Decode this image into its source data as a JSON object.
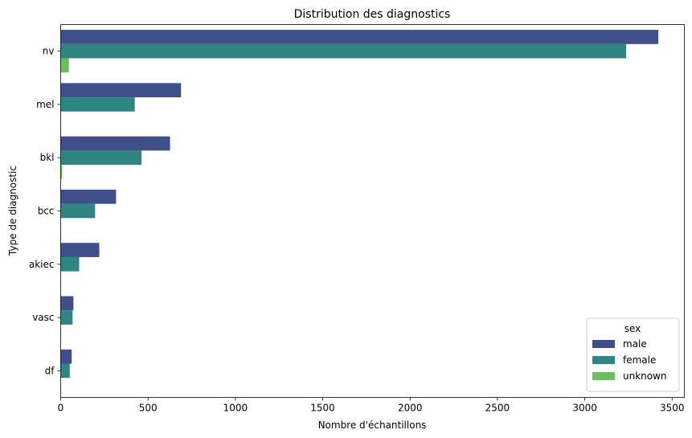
{
  "chart_data": {
    "type": "bar",
    "orientation": "horizontal",
    "title": "Distribution des diagnostics",
    "xlabel": "Nombre d'échantillons",
    "ylabel": "Type de diagnostic",
    "categories": [
      "nv",
      "mel",
      "bkl",
      "bcc",
      "akiec",
      "vasc",
      "df"
    ],
    "xlim": [
      0,
      3570
    ],
    "xticks": [
      0,
      500,
      1000,
      1500,
      2000,
      2500,
      3000,
      3500
    ],
    "grid": false,
    "legend": {
      "title": "sex",
      "placement": "lower-right"
    },
    "series": [
      {
        "name": "male",
        "color": "#3e4f8a",
        "values": [
          3421,
          689,
          626,
          317,
          221,
          73,
          63
        ]
      },
      {
        "name": "female",
        "color": "#2e8581",
        "values": [
          3237,
          424,
          463,
          197,
          106,
          68,
          52
        ]
      },
      {
        "name": "unknown",
        "color": "#6cbf5d",
        "values": [
          47,
          0,
          8,
          0,
          0,
          0,
          0
        ]
      }
    ]
  }
}
